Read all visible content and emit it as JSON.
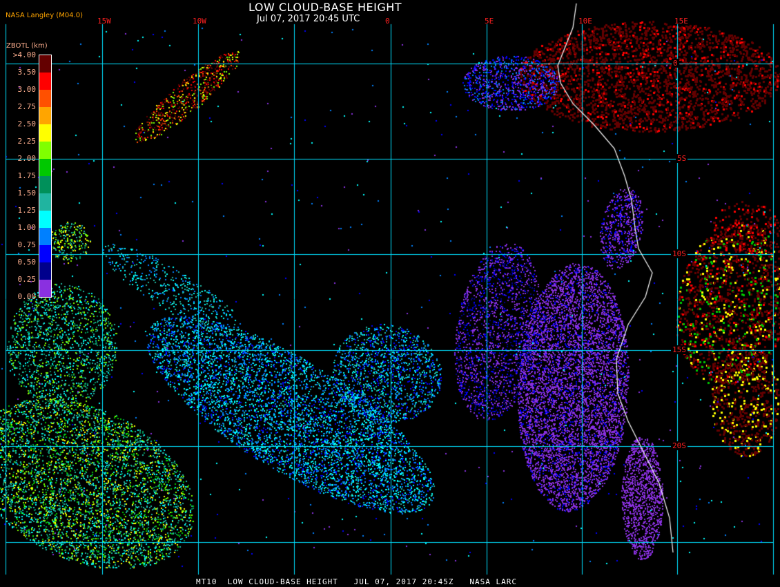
{
  "header": {
    "title": "LOW CLOUD-BASE HEIGHT",
    "subtitle": "Jul 07, 2017 20:45 UTC",
    "brand": "NASA Langley (M04.0)"
  },
  "map": {
    "longitude_labels": [
      "15W",
      "10W",
      "0",
      "5E",
      "10E",
      "15E"
    ],
    "latitude_labels": [
      "0",
      "5S",
      "10S",
      "15S",
      "20S"
    ],
    "grid_color": "#00e0ff",
    "coastline_color": "#ffffff",
    "label_color": "#ff2020"
  },
  "legend": {
    "title": "ZBOTL (km)",
    "labels": [
      ">4.00",
      "3.50",
      "3.00",
      "2.75",
      "2.50",
      "2.25",
      "2.00",
      "1.75",
      "1.50",
      "1.25",
      "1.00",
      "0.75",
      "0.50",
      "0.25",
      "0.00"
    ],
    "colors": [
      "#640000",
      "#ff0000",
      "#ff5000",
      "#ffa500",
      "#ffff00",
      "#80ff00",
      "#00c800",
      "#00905a",
      "#20b4a0",
      "#00ffff",
      "#0080ff",
      "#0000ff",
      "#00008c",
      "#8a30e0"
    ]
  },
  "footer": {
    "text": "MT10  LOW CLOUD-BASE HEIGHT   JUL 07, 2017 20:45Z   NASA LARC"
  }
}
